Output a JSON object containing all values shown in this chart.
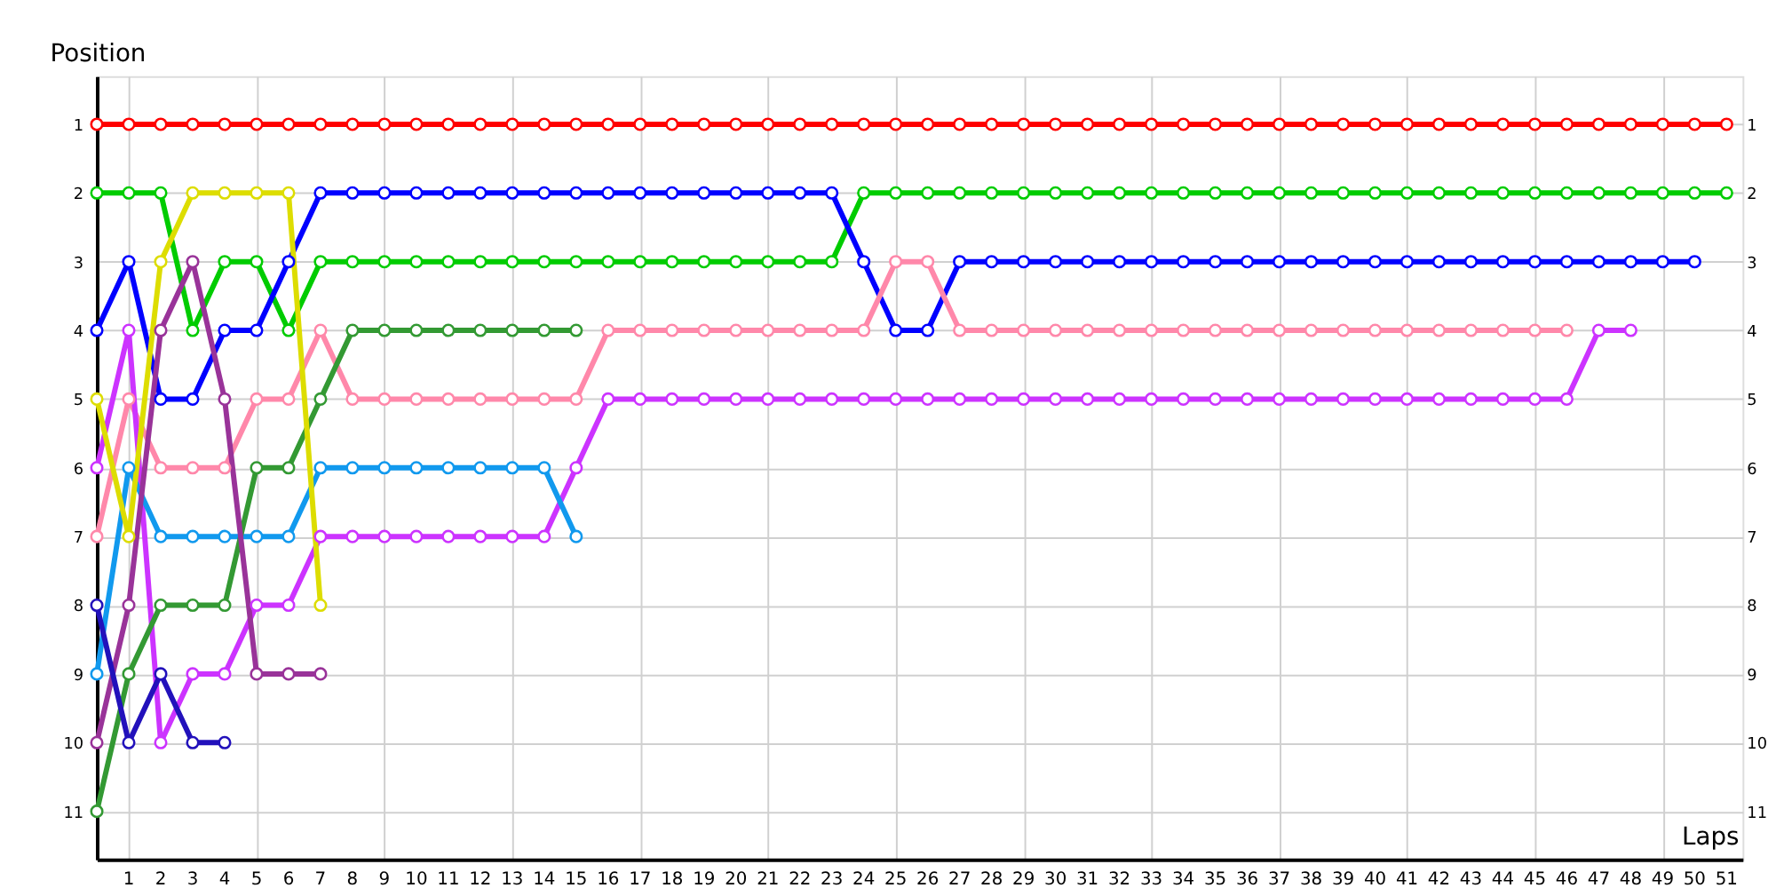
{
  "chart_data": {
    "type": "line",
    "xlabel": "Laps",
    "ylabel": "Position",
    "x": [
      0,
      1,
      2,
      3,
      4,
      5,
      6,
      7,
      8,
      9,
      10,
      11,
      12,
      13,
      14,
      15,
      16,
      17,
      18,
      19,
      20,
      21,
      22,
      23,
      24,
      25,
      26,
      27,
      28,
      29,
      30,
      31,
      32,
      33,
      34,
      35,
      36,
      37,
      38,
      39,
      40,
      41,
      42,
      43,
      44,
      45,
      46,
      47,
      48,
      49,
      50,
      51
    ],
    "series": [
      {
        "color": "#ff0000",
        "values": [
          1,
          1,
          1,
          1,
          1,
          1,
          1,
          1,
          1,
          1,
          1,
          1,
          1,
          1,
          1,
          1,
          1,
          1,
          1,
          1,
          1,
          1,
          1,
          1,
          1,
          1,
          1,
          1,
          1,
          1,
          1,
          1,
          1,
          1,
          1,
          1,
          1,
          1,
          1,
          1,
          1,
          1,
          1,
          1,
          1,
          1,
          1,
          1,
          1,
          1,
          1,
          1
        ]
      },
      {
        "color": "#00cc00",
        "values": [
          2,
          2,
          2,
          4,
          3,
          3,
          4,
          3,
          3,
          3,
          3,
          3,
          3,
          3,
          3,
          3,
          3,
          3,
          3,
          3,
          3,
          3,
          3,
          3,
          2,
          2,
          2,
          2,
          2,
          2,
          2,
          2,
          2,
          2,
          2,
          2,
          2,
          2,
          2,
          2,
          2,
          2,
          2,
          2,
          2,
          2,
          2,
          2,
          2,
          2,
          2,
          2
        ]
      },
      {
        "color": "#0000ff",
        "x": [
          0,
          1,
          2,
          3,
          4,
          5,
          6,
          7,
          8,
          9,
          10,
          11,
          12,
          13,
          14,
          15,
          16,
          17,
          18,
          19,
          20,
          21,
          22,
          23,
          24,
          25,
          26,
          27,
          28,
          29,
          30,
          31,
          32,
          33,
          34,
          35,
          36,
          37,
          38,
          39,
          40,
          41,
          42,
          43,
          44,
          45,
          46,
          47,
          48,
          49,
          50
        ],
        "values": [
          4,
          3,
          5,
          5,
          4,
          4,
          3,
          2,
          2,
          2,
          2,
          2,
          2,
          2,
          2,
          2,
          2,
          2,
          2,
          2,
          2,
          2,
          2,
          2,
          3,
          4,
          4,
          3,
          3,
          3,
          3,
          3,
          3,
          3,
          3,
          3,
          3,
          3,
          3,
          3,
          3,
          3,
          3,
          3,
          3,
          3,
          3,
          3,
          3,
          3,
          3
        ]
      },
      {
        "color": "#ff88aa",
        "x": [
          0,
          1,
          2,
          3,
          4,
          5,
          6,
          7,
          8,
          9,
          10,
          11,
          12,
          13,
          14,
          15,
          16,
          17,
          18,
          19,
          20,
          21,
          22,
          23,
          24,
          25,
          26,
          27,
          28,
          29,
          30,
          31,
          32,
          33,
          34,
          35,
          36,
          37,
          38,
          39,
          40,
          41,
          42,
          43,
          44,
          45,
          46
        ],
        "values": [
          7,
          5,
          6,
          6,
          6,
          5,
          5,
          4,
          5,
          5,
          5,
          5,
          5,
          5,
          5,
          5,
          4,
          4,
          4,
          4,
          4,
          4,
          4,
          4,
          4,
          3,
          3,
          4,
          4,
          4,
          4,
          4,
          4,
          4,
          4,
          4,
          4,
          4,
          4,
          4,
          4,
          4,
          4,
          4,
          4,
          4,
          4
        ]
      },
      {
        "color": "#cc33ff",
        "x": [
          0,
          1,
          2,
          3,
          4,
          5,
          6,
          7,
          8,
          9,
          10,
          11,
          12,
          13,
          14,
          15,
          16,
          17,
          18,
          19,
          20,
          21,
          22,
          23,
          24,
          25,
          26,
          27,
          28,
          29,
          30,
          31,
          32,
          33,
          34,
          35,
          36,
          37,
          38,
          39,
          40,
          41,
          42,
          43,
          44,
          45,
          46,
          47,
          48
        ],
        "values": [
          6,
          4,
          10,
          9,
          9,
          8,
          8,
          7,
          7,
          7,
          7,
          7,
          7,
          7,
          7,
          6,
          5,
          5,
          5,
          5,
          5,
          5,
          5,
          5,
          5,
          5,
          5,
          5,
          5,
          5,
          5,
          5,
          5,
          5,
          5,
          5,
          5,
          5,
          5,
          5,
          5,
          5,
          5,
          5,
          5,
          5,
          5,
          4,
          4
        ]
      },
      {
        "color": "#1199ee",
        "x": [
          0,
          1,
          2,
          3,
          4,
          5,
          6,
          7,
          8,
          9,
          10,
          11,
          12,
          13,
          14,
          15
        ],
        "values": [
          9,
          6,
          7,
          7,
          7,
          7,
          7,
          6,
          6,
          6,
          6,
          6,
          6,
          6,
          6,
          7
        ]
      },
      {
        "color": "#339933",
        "x": [
          0,
          1,
          2,
          3,
          4,
          5,
          6,
          7,
          8,
          9,
          10,
          11,
          12,
          13,
          14,
          15
        ],
        "values": [
          11,
          9,
          8,
          8,
          8,
          6,
          6,
          5,
          4,
          4,
          4,
          4,
          4,
          4,
          4,
          4
        ]
      },
      {
        "color": "#dddd00",
        "x": [
          0,
          1,
          2,
          3,
          4,
          5,
          6,
          7
        ],
        "values": [
          5,
          7,
          3,
          2,
          2,
          2,
          2,
          8
        ]
      },
      {
        "color": "#993399",
        "x": [
          0,
          1,
          2,
          3,
          4,
          5,
          6,
          7
        ],
        "values": [
          10,
          8,
          4,
          3,
          5,
          9,
          9,
          9
        ]
      },
      {
        "color": "#2211bb",
        "x": [
          0,
          1,
          2,
          3,
          4
        ],
        "values": [
          8,
          10,
          9,
          10,
          10
        ]
      }
    ],
    "xlim": [
      0,
      51.5
    ],
    "xticks": [
      1,
      2,
      3,
      4,
      5,
      6,
      7,
      8,
      9,
      10,
      11,
      12,
      13,
      14,
      15,
      16,
      17,
      18,
      19,
      20,
      21,
      22,
      23,
      24,
      25,
      26,
      27,
      28,
      29,
      30,
      31,
      32,
      33,
      34,
      35,
      36,
      37,
      38,
      39,
      40,
      41,
      42,
      43,
      44,
      45,
      46,
      47,
      48,
      49,
      50,
      51
    ],
    "ylim": [
      11.7,
      0.3
    ],
    "yticks": [
      1,
      2,
      3,
      4,
      5,
      6,
      7,
      8,
      9,
      10,
      11
    ],
    "y2lim": [
      11.7,
      0.3
    ],
    "y2ticks": [
      1,
      2,
      3,
      4,
      5,
      6,
      7,
      8,
      9,
      10,
      11
    ],
    "grid": true,
    "legend": false,
    "marker": "circle",
    "line_style": "solid"
  }
}
